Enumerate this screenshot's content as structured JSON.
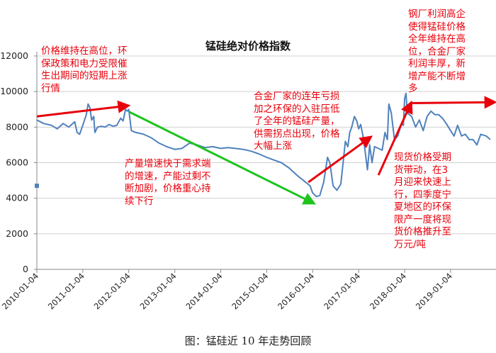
{
  "chart_data": {
    "type": "line",
    "title": "锰硅绝对价格指数",
    "xlabel": "",
    "ylabel": "",
    "ylim": [
      0,
      12000
    ],
    "yticks": [
      0,
      2000,
      4000,
      6000,
      8000,
      10000,
      12000
    ],
    "xticks": [
      "2010-01-04",
      "2011-01-04",
      "2012-01-04",
      "2013-01-04",
      "2014-01-04",
      "2015-01-04",
      "2016-01-04",
      "2017-01-04",
      "2018-01-04",
      "2019-01-04"
    ],
    "grid": true,
    "series": [
      {
        "color": "#4f81bd",
        "points": [
          [
            "2010-01-04",
            8400
          ],
          [
            "2010-03-01",
            8200
          ],
          [
            "2010-05-01",
            8100
          ],
          [
            "2010-06-15",
            7900
          ],
          [
            "2010-08-01",
            8200
          ],
          [
            "2010-09-15",
            8000
          ],
          [
            "2010-11-01",
            8300
          ],
          [
            "2010-11-20",
            7700
          ],
          [
            "2010-12-10",
            7600
          ],
          [
            "2011-01-04",
            8100
          ],
          [
            "2011-02-01",
            8700
          ],
          [
            "2011-02-15",
            9300
          ],
          [
            "2011-03-01",
            9100
          ],
          [
            "2011-03-15",
            8400
          ],
          [
            "2011-04-01",
            8600
          ],
          [
            "2011-04-10",
            7700
          ],
          [
            "2011-05-01",
            8000
          ],
          [
            "2011-06-01",
            8050
          ],
          [
            "2011-07-01",
            8000
          ],
          [
            "2011-08-01",
            8150
          ],
          [
            "2011-09-01",
            8050
          ],
          [
            "2011-10-01",
            8100
          ],
          [
            "2011-11-01",
            8500
          ],
          [
            "2011-11-20",
            8350
          ],
          [
            "2011-12-10",
            9000
          ],
          [
            "2011-12-25",
            8900
          ],
          [
            "2012-01-04",
            9000
          ],
          [
            "2012-01-25",
            7800
          ],
          [
            "2012-03-01",
            7700
          ],
          [
            "2012-05-01",
            7600
          ],
          [
            "2012-07-01",
            7400
          ],
          [
            "2012-09-01",
            7100
          ],
          [
            "2012-11-01",
            6900
          ],
          [
            "2013-01-04",
            6750
          ],
          [
            "2013-03-01",
            6800
          ],
          [
            "2013-05-01",
            7100
          ],
          [
            "2013-07-01",
            7000
          ],
          [
            "2013-09-01",
            6850
          ],
          [
            "2013-11-01",
            6900
          ],
          [
            "2014-01-04",
            6800
          ],
          [
            "2014-03-01",
            6850
          ],
          [
            "2014-05-01",
            6800
          ],
          [
            "2014-07-01",
            6750
          ],
          [
            "2014-09-01",
            6650
          ],
          [
            "2014-11-01",
            6500
          ],
          [
            "2015-01-04",
            6300
          ],
          [
            "2015-03-01",
            6150
          ],
          [
            "2015-05-01",
            6000
          ],
          [
            "2015-07-01",
            5700
          ],
          [
            "2015-09-01",
            5300
          ],
          [
            "2015-11-01",
            4950
          ],
          [
            "2015-12-15",
            4700
          ],
          [
            "2016-01-04",
            4300
          ],
          [
            "2016-02-01",
            4100
          ],
          [
            "2016-03-01",
            4150
          ],
          [
            "2016-04-01",
            4900
          ],
          [
            "2016-05-01",
            6300
          ],
          [
            "2016-05-20",
            6000
          ],
          [
            "2016-06-15",
            4700
          ],
          [
            "2016-07-15",
            4450
          ],
          [
            "2016-08-15",
            4800
          ],
          [
            "2016-09-20",
            7200
          ],
          [
            "2016-10-10",
            6900
          ],
          [
            "2016-10-25",
            7700
          ],
          [
            "2016-11-10",
            8000
          ],
          [
            "2016-12-01",
            8600
          ],
          [
            "2016-12-20",
            8350
          ],
          [
            "2017-01-04",
            7900
          ],
          [
            "2017-01-20",
            8150
          ],
          [
            "2017-02-10",
            7400
          ],
          [
            "2017-02-25",
            6600
          ],
          [
            "2017-03-15",
            5600
          ],
          [
            "2017-04-01",
            7000
          ],
          [
            "2017-04-20",
            6000
          ],
          [
            "2017-05-10",
            6900
          ],
          [
            "2017-06-10",
            6800
          ],
          [
            "2017-07-10",
            6700
          ],
          [
            "2017-08-01",
            7700
          ],
          [
            "2017-08-20",
            7300
          ],
          [
            "2017-09-01",
            9300
          ],
          [
            "2017-09-20",
            8800
          ],
          [
            "2017-10-15",
            7300
          ],
          [
            "2017-11-10",
            7500
          ],
          [
            "2017-12-10",
            8200
          ],
          [
            "2017-12-25",
            8100
          ],
          [
            "2018-01-04",
            9600
          ],
          [
            "2018-01-15",
            9900
          ],
          [
            "2018-01-25",
            8800
          ],
          [
            "2018-03-01",
            8600
          ],
          [
            "2018-04-01",
            8000
          ],
          [
            "2018-05-01",
            8400
          ],
          [
            "2018-06-01",
            7800
          ],
          [
            "2018-07-01",
            8600
          ],
          [
            "2018-08-01",
            8900
          ],
          [
            "2018-09-01",
            8700
          ],
          [
            "2018-10-01",
            8700
          ],
          [
            "2018-11-01",
            8500
          ],
          [
            "2018-12-01",
            8200
          ],
          [
            "2019-01-04",
            7800
          ],
          [
            "2019-02-01",
            7500
          ],
          [
            "2019-03-01",
            8100
          ],
          [
            "2019-04-01",
            7500
          ],
          [
            "2019-05-01",
            7600
          ],
          [
            "2019-06-01",
            7300
          ],
          [
            "2019-07-01",
            7300
          ],
          [
            "2019-08-01",
            7000
          ],
          [
            "2019-09-01",
            7600
          ],
          [
            "2019-10-15",
            7500
          ],
          [
            "2019-11-15",
            7300
          ]
        ]
      }
    ],
    "stray_marker": [
      "2010-01-04",
      4700
    ],
    "trend_arrows": [
      {
        "color": "#e8000b",
        "from": [
          "2010-01-04",
          8600
        ],
        "to": [
          "2011-12-20",
          9200
        ]
      },
      {
        "color": "#1ec41e",
        "from": [
          "2012-01-10",
          8850
        ],
        "to": [
          "2016-01-04",
          3750
        ]
      },
      {
        "color": "#e8000b",
        "from": [
          "2015-12-01",
          4900
        ],
        "to": [
          "2017-04-01",
          7400
        ]
      },
      {
        "color": "#e8000b",
        "from": [
          "2017-06-10",
          5300
        ],
        "to": [
          "2018-02-20",
          9300
        ]
      },
      {
        "color": "#e8000b",
        "from": [
          "2018-02-20",
          9350
        ],
        "to": [
          "2019-12-10",
          9400
        ]
      }
    ]
  },
  "annotations": [
    "价格维持在高位，环\n保政策和电力受限催\n生出期间的短期上涨\n行情",
    "产量增速快于需求端\n的增速，产能过剩不\n断加剧，价格重心持\n续下行",
    "合金厂家的连年亏损\n加之环保的入驻压低\n了全年的锰硅产量，\n供需拐点出现，价格\n大幅上涨",
    "钢厂利润高企\n使得锰硅价格\n全年维持在高\n位，合金厂家\n利润丰厚，新\n增产能不断增\n多",
    "现货价格受期\n货带动，在3\n月迎来快速上\n行，四季度宁\n夏地区的环保\n限产一度将现\n货价格推升至\n万元/吨"
  ],
  "caption": "图：锰硅近 10 年走势回顾"
}
